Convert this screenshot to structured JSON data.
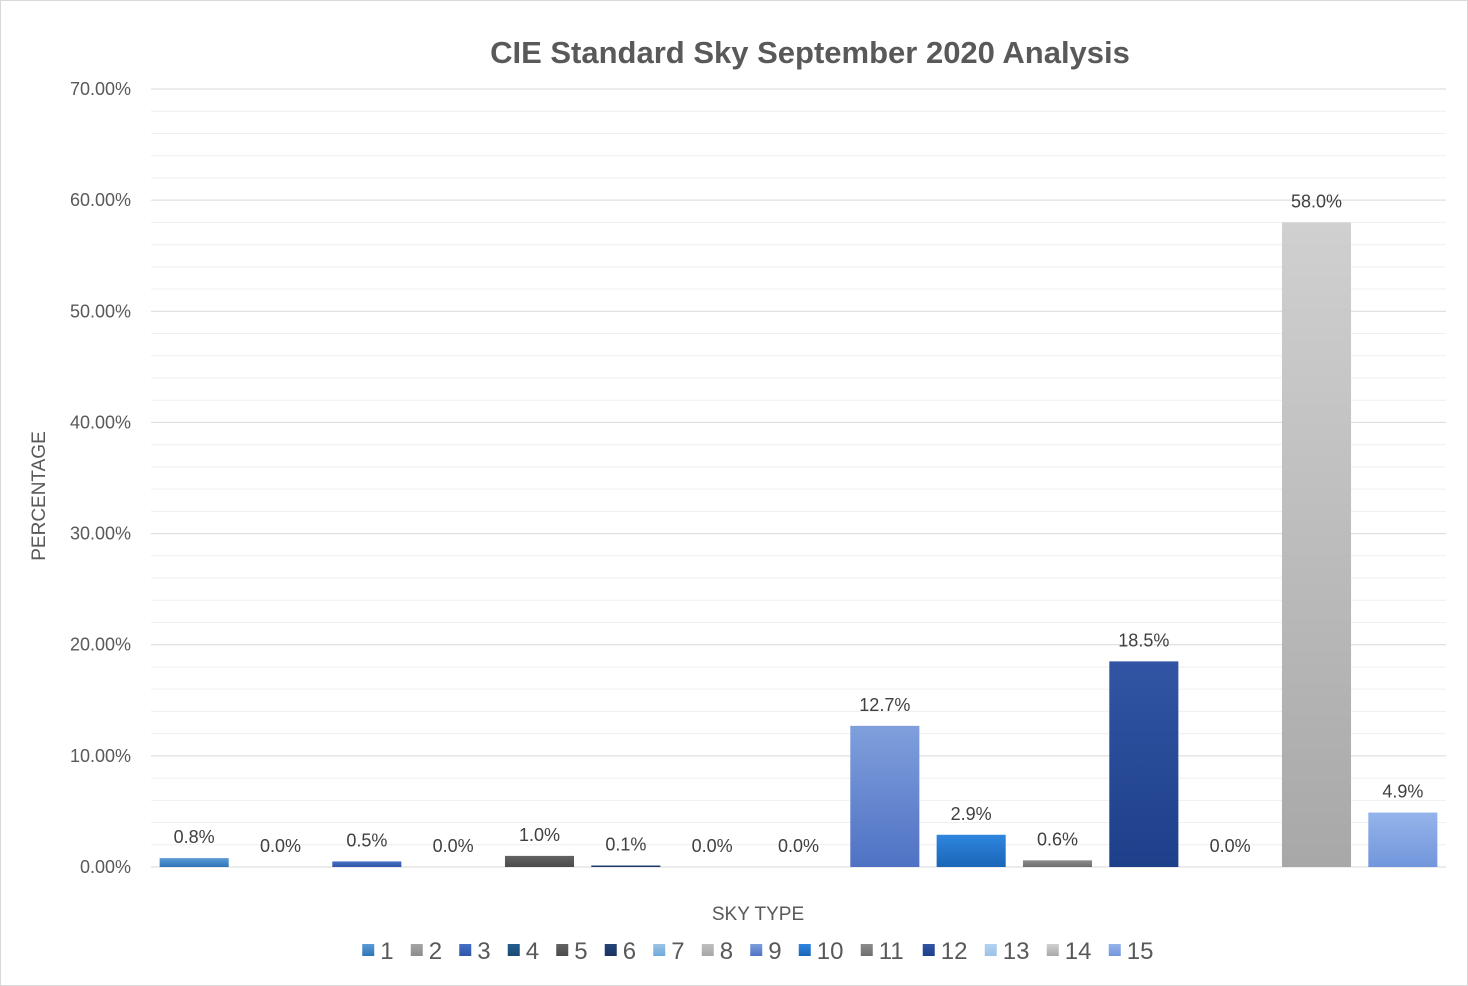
{
  "chart_data": {
    "type": "bar",
    "title": "CIE Standard Sky September 2020 Analysis",
    "xlabel": "SKY TYPE",
    "ylabel": "PERCENTAGE",
    "ylim": [
      0,
      70
    ],
    "y_ticks": [
      0,
      10,
      20,
      30,
      40,
      50,
      60,
      70
    ],
    "y_tick_labels": [
      "0.00%",
      "10.00%",
      "20.00%",
      "30.00%",
      "40.00%",
      "50.00%",
      "60.00%",
      "70.00%"
    ],
    "grid": true,
    "legend_position": "bottom",
    "categories": [
      "1",
      "2",
      "3",
      "4",
      "5",
      "6",
      "7",
      "8",
      "9",
      "10",
      "11",
      "12",
      "13",
      "14",
      "15"
    ],
    "values": [
      0.8,
      0.0,
      0.5,
      0.0,
      1.0,
      0.1,
      0.0,
      0.0,
      12.7,
      2.9,
      0.6,
      18.5,
      0.0,
      58.0,
      4.9
    ],
    "data_labels": [
      "0.8%",
      "0.0%",
      "0.5%",
      "0.0%",
      "1.0%",
      "0.1%",
      "0.0%",
      "0.0%",
      "12.7%",
      "2.9%",
      "0.6%",
      "18.5%",
      "0.0%",
      "58.0%",
      "4.9%"
    ],
    "colors": [
      [
        "#5b9bd5",
        "#2e75b6"
      ],
      [
        "#a5a5a5",
        "#8c8c8c"
      ],
      [
        "#4472c4",
        "#2f55a8"
      ],
      [
        "#255e91",
        "#1b4a73"
      ],
      [
        "#636363",
        "#4a4a4a"
      ],
      [
        "#264478",
        "#1a3260"
      ],
      [
        "#9dc3e6",
        "#6fa8dc"
      ],
      [
        "#bfbfbf",
        "#a6a6a6"
      ],
      [
        "#7f9fdc",
        "#4f72c4"
      ],
      [
        "#2e86de",
        "#1a66b8"
      ],
      [
        "#8c8c8c",
        "#6e6e6e"
      ],
      [
        "#3155a4",
        "#1e3f8a"
      ],
      [
        "#b4d2f0",
        "#9cc2e8"
      ],
      [
        "#d0d0d0",
        "#a8a8a8"
      ],
      [
        "#94b4ea",
        "#7296dc"
      ]
    ]
  }
}
